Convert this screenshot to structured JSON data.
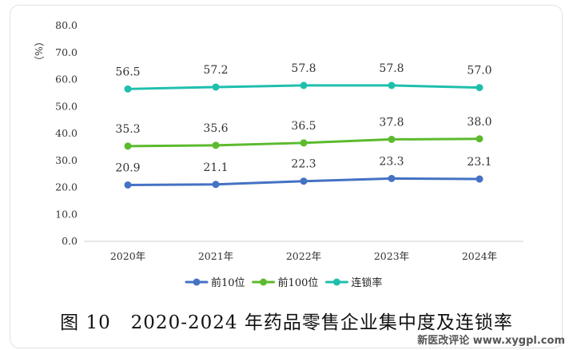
{
  "chart_data": {
    "type": "line",
    "ylabel": "（%）",
    "ylim": [
      0,
      80
    ],
    "yticks": [
      "0.0",
      "10.0",
      "20.0",
      "30.0",
      "40.0",
      "50.0",
      "60.0",
      "70.0",
      "80.0"
    ],
    "categories": [
      "2020年",
      "2021年",
      "2022年",
      "2023年",
      "2024年"
    ],
    "series": [
      {
        "name": "前10位",
        "color": "#4472c4",
        "values": [
          20.9,
          21.1,
          22.3,
          23.3,
          23.1
        ],
        "labels": [
          "20.9",
          "21.1",
          "22.3",
          "23.3",
          "23.1"
        ]
      },
      {
        "name": "前100位",
        "color": "#5cba2e",
        "values": [
          35.3,
          35.6,
          36.5,
          37.8,
          38.0
        ],
        "labels": [
          "35.3",
          "35.6",
          "36.5",
          "37.8",
          "38.0"
        ]
      },
      {
        "name": "连锁率",
        "color": "#1fbfae",
        "values": [
          56.5,
          57.2,
          57.8,
          57.8,
          57.0
        ],
        "labels": [
          "56.5",
          "57.2",
          "57.8",
          "57.8",
          "57.0"
        ]
      }
    ],
    "legend": "bottom",
    "grid": false
  },
  "caption": "图 10   2020-2024 年药品零售企业集中度及连锁率",
  "watermark": "新医改评论 www.xygpl.com"
}
